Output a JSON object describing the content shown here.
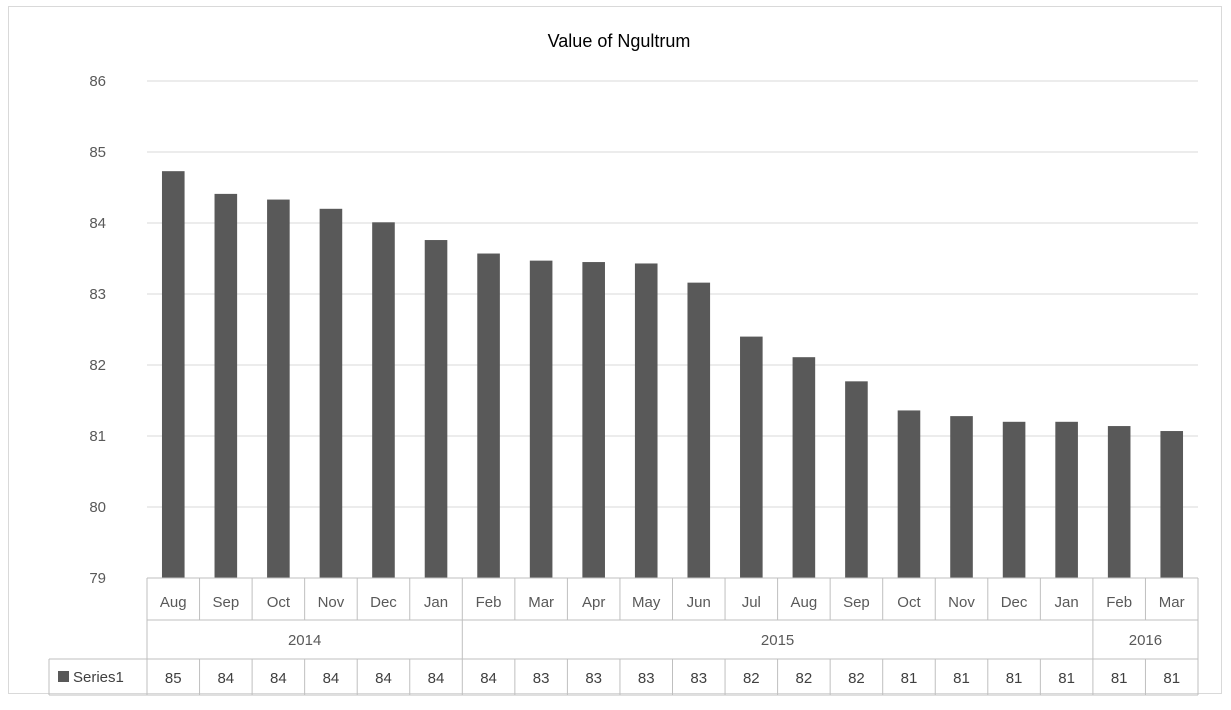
{
  "chart_data": {
    "type": "bar",
    "title": "Value of Ngultrum",
    "xlabel": "",
    "ylabel": "",
    "ylim": [
      79,
      86
    ],
    "yticks": [
      79,
      80,
      81,
      82,
      83,
      84,
      85,
      86
    ],
    "grid": true,
    "legend_position": "data-table-left",
    "bar_color": "#595959",
    "categories": [
      "Aug",
      "Sep",
      "Oct",
      "Nov",
      "Dec",
      "Jan",
      "Feb",
      "Mar",
      "Apr",
      "May",
      "Jun",
      "Jul",
      "Aug",
      "Sep",
      "Oct",
      "Nov",
      "Dec",
      "Jan",
      "Feb",
      "Mar"
    ],
    "groups": [
      {
        "label": "2014",
        "count": 6
      },
      {
        "label": "2015",
        "count": 12
      },
      {
        "label": "2016",
        "count": 2
      }
    ],
    "series": [
      {
        "name": "Series1",
        "values": [
          84.73,
          84.41,
          84.33,
          84.2,
          84.01,
          83.76,
          83.57,
          83.47,
          83.45,
          83.43,
          83.16,
          82.4,
          82.11,
          81.77,
          81.36,
          81.28,
          81.2,
          81.2,
          81.14,
          81.07
        ],
        "table_values": [
          "85",
          "84",
          "84",
          "84",
          "84",
          "84",
          "84",
          "83",
          "83",
          "83",
          "83",
          "82",
          "82",
          "82",
          "81",
          "81",
          "81",
          "81",
          "81",
          "81"
        ]
      }
    ]
  }
}
